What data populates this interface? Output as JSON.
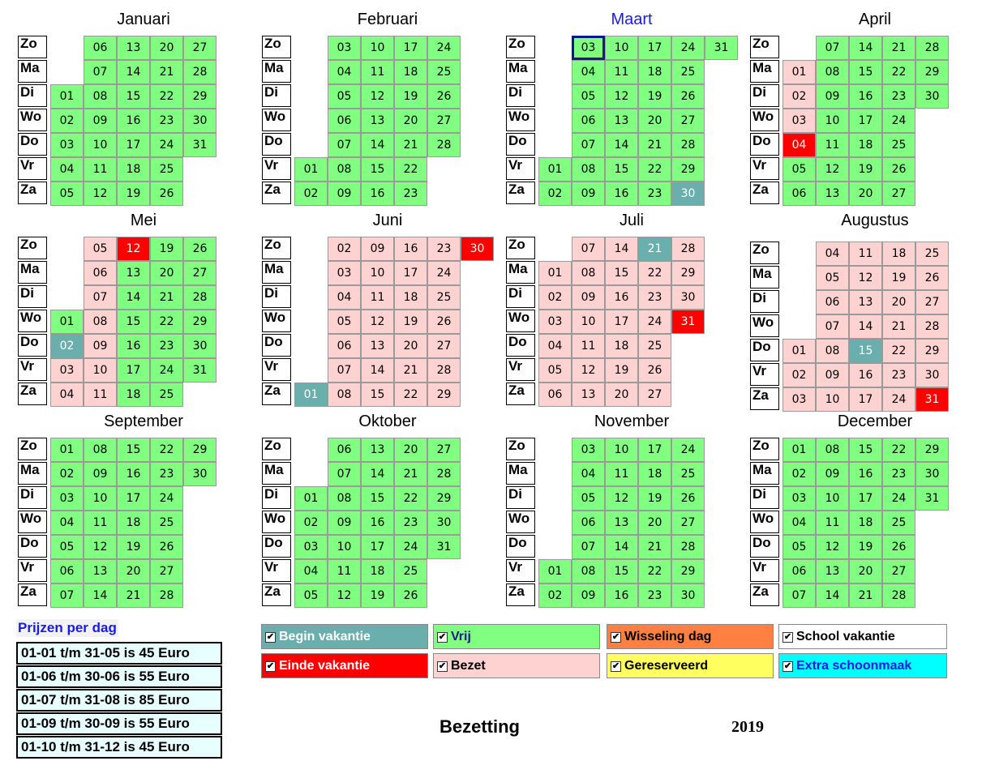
{
  "months": [
    {
      "name": "Januari",
      "current": false,
      "days": [
        [
          null,
          "06",
          "13",
          "20",
          "27"
        ],
        [
          null,
          "07",
          "14",
          "21",
          "28"
        ],
        [
          "01",
          "08",
          "15",
          "22",
          "29"
        ],
        [
          "02",
          "09",
          "16",
          "23",
          "30"
        ],
        [
          "03",
          "10",
          "17",
          "24",
          "31"
        ],
        [
          "04",
          "11",
          "18",
          "25",
          null
        ],
        [
          "05",
          "12",
          "19",
          "26",
          null
        ]
      ],
      "states": [
        [
          null,
          "v",
          "v",
          "v",
          "v"
        ],
        [
          null,
          "v",
          "v",
          "v",
          "v"
        ],
        [
          "v",
          "v",
          "v",
          "v",
          "v"
        ],
        [
          "v",
          "v",
          "v",
          "v",
          "v"
        ],
        [
          "v",
          "v",
          "v",
          "v",
          "v"
        ],
        [
          "v",
          "v",
          "v",
          "v",
          null
        ],
        [
          "v",
          "v",
          "v",
          "v",
          null
        ]
      ]
    },
    {
      "name": "Februari",
      "current": false,
      "days": [
        [
          null,
          "03",
          "10",
          "17",
          "24"
        ],
        [
          null,
          "04",
          "11",
          "18",
          "25"
        ],
        [
          null,
          "05",
          "12",
          "19",
          "26"
        ],
        [
          null,
          "06",
          "13",
          "20",
          "27"
        ],
        [
          null,
          "07",
          "14",
          "21",
          "28"
        ],
        [
          "01",
          "08",
          "15",
          "22",
          null
        ],
        [
          "02",
          "09",
          "16",
          "23",
          null
        ]
      ],
      "states": [
        [
          null,
          "v",
          "v",
          "v",
          "v"
        ],
        [
          null,
          "v",
          "v",
          "v",
          "v"
        ],
        [
          null,
          "v",
          "v",
          "v",
          "v"
        ],
        [
          null,
          "v",
          "v",
          "v",
          "v"
        ],
        [
          null,
          "v",
          "v",
          "v",
          "v"
        ],
        [
          "v",
          "v",
          "v",
          "v",
          null
        ],
        [
          "v",
          "v",
          "v",
          "v",
          null
        ]
      ]
    },
    {
      "name": "Maart",
      "current": true,
      "today": "03",
      "days": [
        [
          null,
          "03",
          "10",
          "17",
          "24",
          "31"
        ],
        [
          null,
          "04",
          "11",
          "18",
          "25",
          null
        ],
        [
          null,
          "05",
          "12",
          "19",
          "26",
          null
        ],
        [
          null,
          "06",
          "13",
          "20",
          "27",
          null
        ],
        [
          null,
          "07",
          "14",
          "21",
          "28",
          null
        ],
        [
          "01",
          "08",
          "15",
          "22",
          "29",
          null
        ],
        [
          "02",
          "09",
          "16",
          "23",
          "30",
          null
        ]
      ],
      "states": [
        [
          null,
          "v",
          "v",
          "v",
          "v",
          "v"
        ],
        [
          null,
          "v",
          "v",
          "v",
          "v",
          null
        ],
        [
          null,
          "v",
          "v",
          "v",
          "v",
          null
        ],
        [
          null,
          "v",
          "v",
          "v",
          "v",
          null
        ],
        [
          null,
          "v",
          "v",
          "v",
          "v",
          null
        ],
        [
          "v",
          "v",
          "v",
          "v",
          "v",
          null
        ],
        [
          "v",
          "v",
          "v",
          "v",
          "begin",
          null
        ]
      ]
    },
    {
      "name": "April",
      "current": false,
      "days": [
        [
          null,
          "07",
          "14",
          "21",
          "28"
        ],
        [
          "01",
          "08",
          "15",
          "22",
          "29"
        ],
        [
          "02",
          "09",
          "16",
          "23",
          "30"
        ],
        [
          "03",
          "10",
          "17",
          "24",
          null
        ],
        [
          "04",
          "11",
          "18",
          "25",
          null
        ],
        [
          "05",
          "12",
          "19",
          "26",
          null
        ],
        [
          "06",
          "13",
          "20",
          "27",
          null
        ]
      ],
      "states": [
        [
          null,
          "v",
          "v",
          "v",
          "v"
        ],
        [
          "b",
          "v",
          "v",
          "v",
          "v"
        ],
        [
          "b",
          "v",
          "v",
          "v",
          "v"
        ],
        [
          "b",
          "v",
          "v",
          "v",
          null
        ],
        [
          "e",
          "v",
          "v",
          "v",
          null
        ],
        [
          "v",
          "v",
          "v",
          "v",
          null
        ],
        [
          "v",
          "v",
          "v",
          "v",
          null
        ]
      ]
    },
    {
      "name": "Mei",
      "current": false,
      "days": [
        [
          null,
          "05",
          "12",
          "19",
          "26"
        ],
        [
          null,
          "06",
          "13",
          "20",
          "27"
        ],
        [
          null,
          "07",
          "14",
          "21",
          "28"
        ],
        [
          "01",
          "08",
          "15",
          "22",
          "29"
        ],
        [
          "02",
          "09",
          "16",
          "23",
          "30"
        ],
        [
          "03",
          "10",
          "17",
          "24",
          "31"
        ],
        [
          "04",
          "11",
          "18",
          "25",
          null
        ]
      ],
      "states": [
        [
          null,
          "b",
          "e",
          "v",
          "v"
        ],
        [
          null,
          "b",
          "v",
          "v",
          "v"
        ],
        [
          null,
          "b",
          "v",
          "v",
          "v"
        ],
        [
          "v",
          "b",
          "v",
          "v",
          "v"
        ],
        [
          "begin",
          "b",
          "v",
          "v",
          "v"
        ],
        [
          "b",
          "b",
          "v",
          "v",
          "v"
        ],
        [
          "b",
          "b",
          "v",
          "v",
          null
        ]
      ]
    },
    {
      "name": "Juni",
      "current": false,
      "days": [
        [
          null,
          "02",
          "09",
          "16",
          "23",
          "30"
        ],
        [
          null,
          "03",
          "10",
          "17",
          "24",
          null
        ],
        [
          null,
          "04",
          "11",
          "18",
          "25",
          null
        ],
        [
          null,
          "05",
          "12",
          "19",
          "26",
          null
        ],
        [
          null,
          "06",
          "13",
          "20",
          "27",
          null
        ],
        [
          null,
          "07",
          "14",
          "21",
          "28",
          null
        ],
        [
          "01",
          "08",
          "15",
          "22",
          "29",
          null
        ]
      ],
      "states": [
        [
          null,
          "b",
          "b",
          "b",
          "b",
          "e"
        ],
        [
          null,
          "b",
          "b",
          "b",
          "b",
          null
        ],
        [
          null,
          "b",
          "b",
          "b",
          "b",
          null
        ],
        [
          null,
          "b",
          "b",
          "b",
          "b",
          null
        ],
        [
          null,
          "b",
          "b",
          "b",
          "b",
          null
        ],
        [
          null,
          "b",
          "b",
          "b",
          "b",
          null
        ],
        [
          "begin",
          "b",
          "b",
          "b",
          "b",
          null
        ]
      ]
    },
    {
      "name": "Juli",
      "current": false,
      "days": [
        [
          null,
          "07",
          "14",
          "21",
          "28"
        ],
        [
          "01",
          "08",
          "15",
          "22",
          "29"
        ],
        [
          "02",
          "09",
          "16",
          "23",
          "30"
        ],
        [
          "03",
          "10",
          "17",
          "24",
          "31"
        ],
        [
          "04",
          "11",
          "18",
          "25",
          null
        ],
        [
          "05",
          "12",
          "19",
          "26",
          null
        ],
        [
          "06",
          "13",
          "20",
          "27",
          null
        ]
      ],
      "states": [
        [
          null,
          "b",
          "b",
          "begin",
          "b"
        ],
        [
          "b",
          "b",
          "b",
          "b",
          "b"
        ],
        [
          "b",
          "b",
          "b",
          "b",
          "b"
        ],
        [
          "b",
          "b",
          "b",
          "b",
          "e"
        ],
        [
          "b",
          "b",
          "b",
          "b",
          null
        ],
        [
          "b",
          "b",
          "b",
          "b",
          null
        ],
        [
          "b",
          "b",
          "b",
          "b",
          null
        ]
      ]
    },
    {
      "name": "Augustus",
      "current": false,
      "days": [
        [
          null,
          "04",
          "11",
          "18",
          "25"
        ],
        [
          null,
          "05",
          "12",
          "19",
          "26"
        ],
        [
          null,
          "06",
          "13",
          "20",
          "27"
        ],
        [
          null,
          "07",
          "14",
          "21",
          "28"
        ],
        [
          "01",
          "08",
          "15",
          "22",
          "29"
        ],
        [
          "02",
          "09",
          "16",
          "23",
          "30"
        ],
        [
          "03",
          "10",
          "17",
          "24",
          "31"
        ]
      ],
      "states": [
        [
          null,
          "b",
          "b",
          "b",
          "b"
        ],
        [
          null,
          "b",
          "b",
          "b",
          "b"
        ],
        [
          null,
          "b",
          "b",
          "b",
          "b"
        ],
        [
          null,
          "b",
          "b",
          "b",
          "b"
        ],
        [
          "b",
          "b",
          "begin",
          "b",
          "b"
        ],
        [
          "b",
          "b",
          "b",
          "b",
          "b"
        ],
        [
          "b",
          "b",
          "b",
          "b",
          "e"
        ]
      ]
    },
    {
      "name": "September",
      "current": false,
      "days": [
        [
          "01",
          "08",
          "15",
          "22",
          "29"
        ],
        [
          "02",
          "09",
          "16",
          "23",
          "30"
        ],
        [
          "03",
          "10",
          "17",
          "24",
          null
        ],
        [
          "04",
          "11",
          "18",
          "25",
          null
        ],
        [
          "05",
          "12",
          "19",
          "26",
          null
        ],
        [
          "06",
          "13",
          "20",
          "27",
          null
        ],
        [
          "07",
          "14",
          "21",
          "28",
          null
        ]
      ],
      "states": [
        [
          "v",
          "v",
          "v",
          "v",
          "v"
        ],
        [
          "v",
          "v",
          "v",
          "v",
          "v"
        ],
        [
          "v",
          "v",
          "v",
          "v",
          null
        ],
        [
          "v",
          "v",
          "v",
          "v",
          null
        ],
        [
          "v",
          "v",
          "v",
          "v",
          null
        ],
        [
          "v",
          "v",
          "v",
          "v",
          null
        ],
        [
          "v",
          "v",
          "v",
          "v",
          null
        ]
      ]
    },
    {
      "name": "Oktober",
      "current": false,
      "days": [
        [
          null,
          "06",
          "13",
          "20",
          "27"
        ],
        [
          null,
          "07",
          "14",
          "21",
          "28"
        ],
        [
          "01",
          "08",
          "15",
          "22",
          "29"
        ],
        [
          "02",
          "09",
          "16",
          "23",
          "30"
        ],
        [
          "03",
          "10",
          "17",
          "24",
          "31"
        ],
        [
          "04",
          "11",
          "18",
          "25",
          null
        ],
        [
          "05",
          "12",
          "19",
          "26",
          null
        ]
      ],
      "states": [
        [
          null,
          "v",
          "v",
          "v",
          "v"
        ],
        [
          null,
          "v",
          "v",
          "v",
          "v"
        ],
        [
          "v",
          "v",
          "v",
          "v",
          "v"
        ],
        [
          "v",
          "v",
          "v",
          "v",
          "v"
        ],
        [
          "v",
          "v",
          "v",
          "v",
          "v"
        ],
        [
          "v",
          "v",
          "v",
          "v",
          null
        ],
        [
          "v",
          "v",
          "v",
          "v",
          null
        ]
      ]
    },
    {
      "name": "November",
      "current": false,
      "days": [
        [
          null,
          "03",
          "10",
          "17",
          "24"
        ],
        [
          null,
          "04",
          "11",
          "18",
          "25"
        ],
        [
          null,
          "05",
          "12",
          "19",
          "26"
        ],
        [
          null,
          "06",
          "13",
          "20",
          "27"
        ],
        [
          null,
          "07",
          "14",
          "21",
          "28"
        ],
        [
          "01",
          "08",
          "15",
          "22",
          "29"
        ],
        [
          "02",
          "09",
          "16",
          "23",
          "30"
        ]
      ],
      "states": [
        [
          null,
          "v",
          "v",
          "v",
          "v"
        ],
        [
          null,
          "v",
          "v",
          "v",
          "v"
        ],
        [
          null,
          "v",
          "v",
          "v",
          "v"
        ],
        [
          null,
          "v",
          "v",
          "v",
          "v"
        ],
        [
          null,
          "v",
          "v",
          "v",
          "v"
        ],
        [
          "v",
          "v",
          "v",
          "v",
          "v"
        ],
        [
          "v",
          "v",
          "v",
          "v",
          "v"
        ]
      ]
    },
    {
      "name": "December",
      "current": false,
      "days": [
        [
          "01",
          "08",
          "15",
          "22",
          "29"
        ],
        [
          "02",
          "09",
          "16",
          "23",
          "30"
        ],
        [
          "03",
          "10",
          "17",
          "24",
          "31"
        ],
        [
          "04",
          "11",
          "18",
          "25",
          null
        ],
        [
          "05",
          "12",
          "19",
          "26",
          null
        ],
        [
          "06",
          "13",
          "20",
          "27",
          null
        ],
        [
          "07",
          "14",
          "21",
          "28",
          null
        ]
      ],
      "states": [
        [
          "v",
          "v",
          "v",
          "v",
          "v"
        ],
        [
          "v",
          "v",
          "v",
          "v",
          "v"
        ],
        [
          "v",
          "v",
          "v",
          "v",
          "v"
        ],
        [
          "v",
          "v",
          "v",
          "v",
          null
        ],
        [
          "v",
          "v",
          "v",
          "v",
          null
        ],
        [
          "v",
          "v",
          "v",
          "v",
          null
        ],
        [
          "v",
          "v",
          "v",
          "v",
          null
        ]
      ]
    }
  ],
  "weekdays": [
    "Zo",
    "Ma",
    "Di",
    "Wo",
    "Do",
    "Vr",
    "Za"
  ],
  "prices": {
    "title": "Prijzen per dag",
    "rows": [
      "01-01 t/m 31-05 is 45 Euro",
      "01-06 t/m 30-06 is 55 Euro",
      "01-07 t/m 31-08 is 85 Euro",
      "01-09 t/m 30-09 is 55 Euro",
      "01-10 t/m 31-12 is 45 Euro"
    ]
  },
  "legend": [
    {
      "label": "Begin vakantie",
      "bg": "#6aaeae",
      "fg": "#ffffff",
      "checked": true
    },
    {
      "label": "Vrij",
      "bg": "#80ff80",
      "fg": "#1a1a8a",
      "checked": true
    },
    {
      "label": "Wisseling dag",
      "bg": "#ff8040",
      "fg": "#000000",
      "checked": true
    },
    {
      "label": "School vakantie",
      "bg": "#ffffff",
      "fg": "#000000",
      "checked": true
    },
    {
      "label": "Einde vakantie",
      "bg": "#ff0000",
      "fg": "#ffffff",
      "checked": true
    },
    {
      "label": "Bezet",
      "bg": "#ffd2d2",
      "fg": "#000000",
      "checked": true
    },
    {
      "label": "Gereserveerd",
      "bg": "#ffff60",
      "fg": "#000000",
      "checked": true
    },
    {
      "label": "Extra schoonmaak",
      "bg": "#00ffff",
      "fg": "#1a1ae6",
      "checked": true
    }
  ],
  "footer": {
    "title": "Bezetting",
    "year": "2019"
  }
}
